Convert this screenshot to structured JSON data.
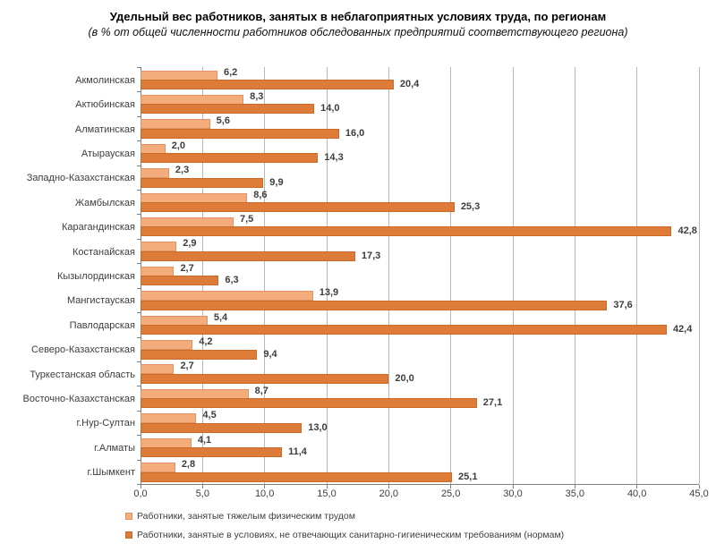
{
  "title": "Удельный вес работников, занятых в неблагоприятных условиях труда, по регионам",
  "subtitle": "(в % от общей численности работников обследованных предприятий соответствующего региона)",
  "chart_data": {
    "type": "bar",
    "orientation": "horizontal",
    "title": "Удельный вес работников, занятых в неблагоприятных условиях труда, по регионам",
    "subtitle": "(в % от общей численности работников обследованных предприятий соответствующего региона)",
    "categories": [
      "Акмолинская",
      "Актюбинская",
      "Алматинская",
      "Атырауская",
      "Западно-Казахстанская",
      "Жамбылская",
      "Карагандинская",
      "Костанайская",
      "Кызылординская",
      "Мангистауская",
      "Павлодарская",
      "Северо-Казахстанская",
      "Туркестанская область",
      "Восточно-Казахстанская",
      "г.Нур-Султан",
      "г.Алматы",
      "г.Шымкент"
    ],
    "series": [
      {
        "name": "Работники, занятые тяжелым физическим трудом",
        "color": "#F5AC7D",
        "values": [
          6.2,
          8.3,
          5.6,
          2.0,
          2.3,
          8.6,
          7.5,
          2.9,
          2.7,
          13.9,
          5.4,
          4.2,
          2.7,
          8.7,
          4.5,
          4.1,
          2.8
        ]
      },
      {
        "name": "Работники, занятые в условиях, не отвечающих санитарно-гигиеническим требованиям (нормам)",
        "color": "#DE7B38",
        "values": [
          20.4,
          14.0,
          16.0,
          14.3,
          9.9,
          25.3,
          42.8,
          17.3,
          6.3,
          37.6,
          42.4,
          9.4,
          20.0,
          27.1,
          13.0,
          11.4,
          25.1
        ]
      }
    ],
    "xlim": [
      0,
      45
    ],
    "x_tick_labels": [
      "0,0",
      "5,0",
      "10,0",
      "15,0",
      "20,0",
      "25,0",
      "30,0",
      "35,0",
      "40,0",
      "45,0"
    ],
    "x_tick_values": [
      0,
      5,
      10,
      15,
      20,
      25,
      30,
      35,
      40,
      45
    ],
    "grid": true,
    "legend_position": "bottom-left",
    "value_labels": "comma-decimal, one digit",
    "colors": {
      "grid": "#b8b8b8",
      "axis": "#808080",
      "text": "#3d3d3d",
      "series_light": "#F5AC7D",
      "series_dark": "#DE7B38"
    }
  }
}
